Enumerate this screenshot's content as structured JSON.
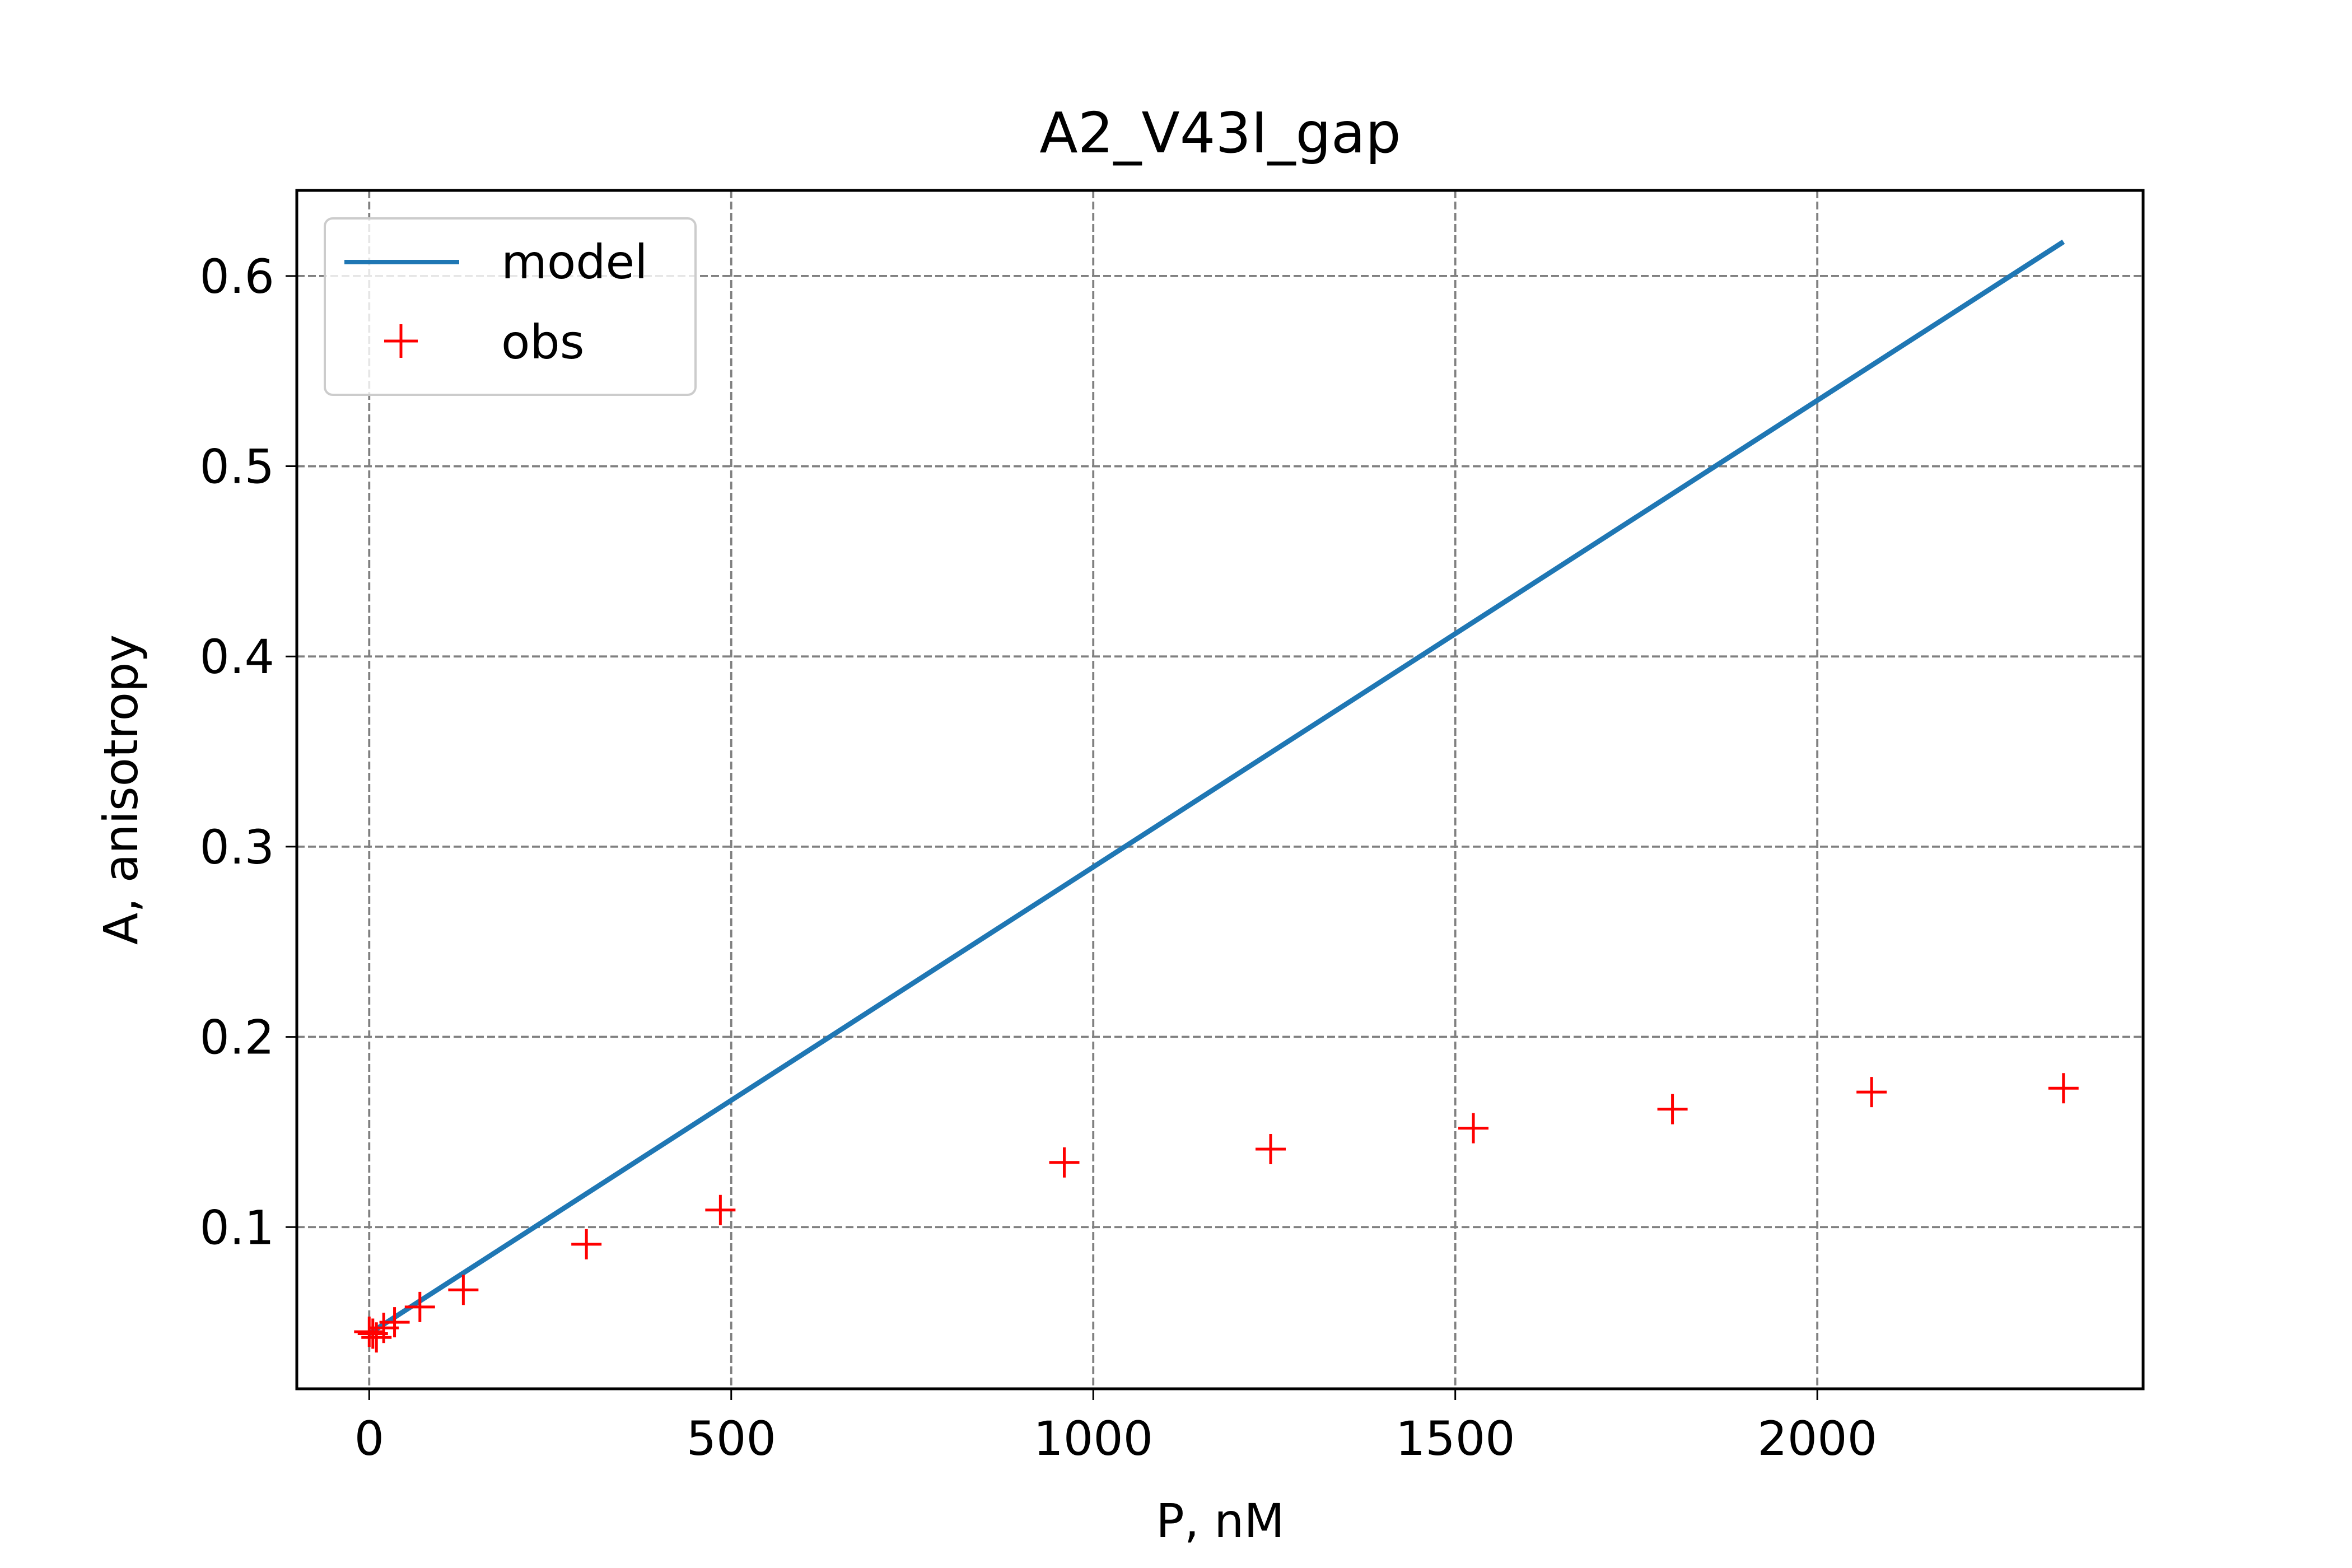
{
  "chart_data": {
    "type": "line",
    "title": "A2_V43I_gap",
    "xlabel": "P, nM",
    "ylabel": "A, anisotropy",
    "xlim": [
      -100,
      2450
    ],
    "ylim": [
      0.015,
      0.645
    ],
    "xticks": [
      0,
      500,
      1000,
      1500,
      2000
    ],
    "yticks": [
      0.1,
      0.2,
      0.3,
      0.4,
      0.5,
      0.6
    ],
    "xtick_labels": [
      "0",
      "500",
      "1000",
      "1500",
      "2000"
    ],
    "ytick_labels": [
      "0.1",
      "0.2",
      "0.3",
      "0.4",
      "0.5",
      "0.6"
    ],
    "grid": true,
    "legend_position": "upper-left",
    "series": [
      {
        "name": "model",
        "kind": "line",
        "color": "#1f77b4",
        "x": [
          0,
          2340
        ],
        "y": [
          0.044,
          0.618
        ]
      },
      {
        "name": "obs",
        "kind": "scatter",
        "marker": "+",
        "color": "#ff0000",
        "x": [
          0,
          5,
          10,
          20,
          35,
          70,
          130,
          300,
          485,
          960,
          1245,
          1525,
          1800,
          2075,
          2340
        ],
        "y": [
          0.045,
          0.044,
          0.042,
          0.047,
          0.05,
          0.058,
          0.067,
          0.091,
          0.109,
          0.134,
          0.141,
          0.152,
          0.162,
          0.171,
          0.173
        ]
      }
    ]
  }
}
